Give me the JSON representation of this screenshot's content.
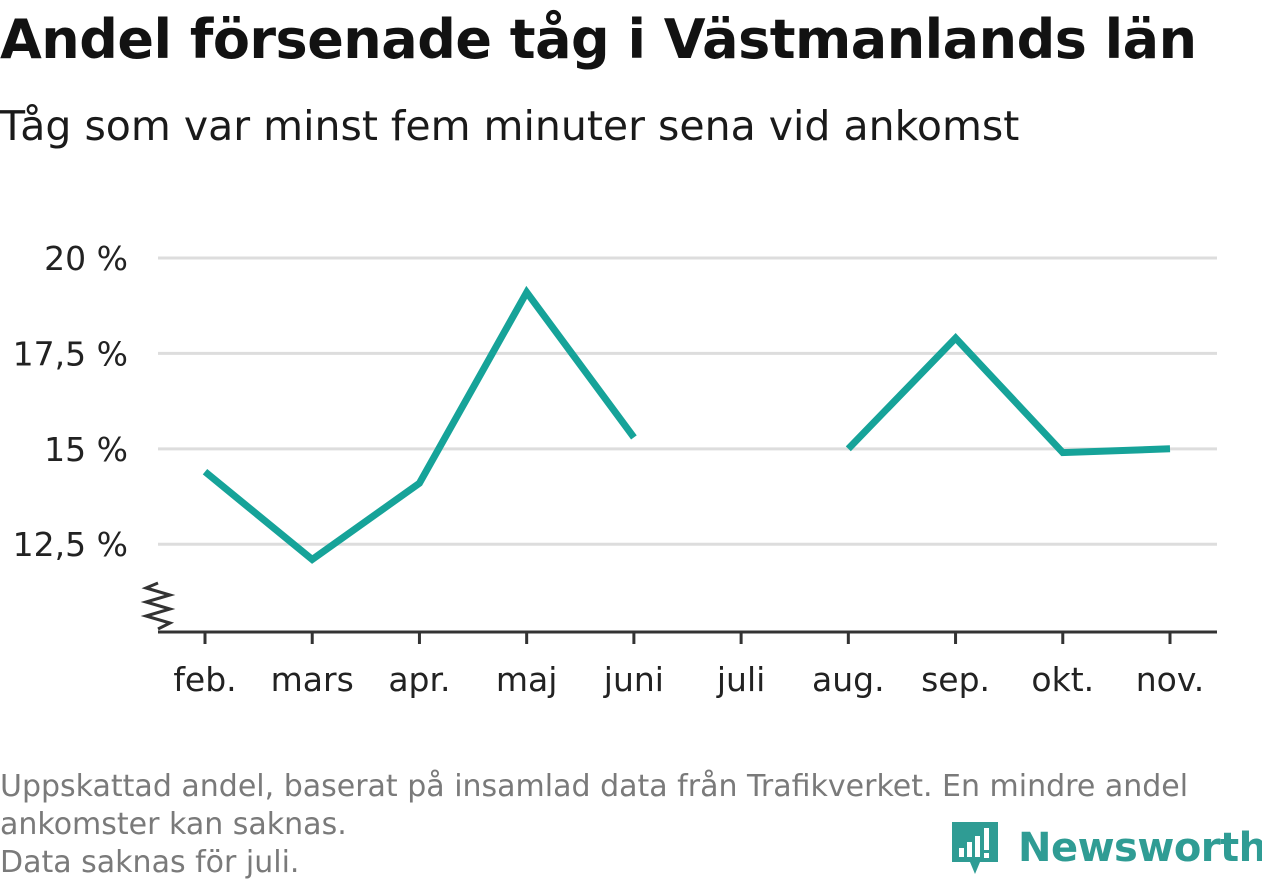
{
  "title": "Andel försenade tåg i Västmanlands län",
  "subtitle": "Tåg som var minst fem minuter sena vid ankomst",
  "chart_data": {
    "type": "line",
    "categories": [
      "feb.",
      "mars",
      "apr.",
      "maj",
      "juni",
      "juli",
      "aug.",
      "sep.",
      "okt.",
      "nov."
    ],
    "series": [
      {
        "values": [
          14.4,
          12.1,
          14.1,
          19.1,
          15.3,
          null,
          15.0,
          17.9,
          14.9,
          15.0
        ]
      }
    ],
    "y_ticks": [
      12.5,
      15,
      17.5,
      20
    ],
    "y_tick_labels": [
      "12,5 %",
      "15 %",
      "17,5 %",
      "20 %"
    ],
    "ylim": [
      10.2,
      20
    ],
    "y_axis_break": true,
    "grid": true,
    "line_color": "#16a399",
    "grid_color": "#dddddd",
    "axis_color": "#333333"
  },
  "notes": [
    "Uppskattad andel, baserat på insamlad data från Trafikverket. En mindre andel",
    "ankomster kan saknas.",
    "Data saknas för juli."
  ],
  "brand": {
    "name": "Newsworthy",
    "icon": "newsworthy-logo-icon",
    "color": "#2f9c94"
  }
}
